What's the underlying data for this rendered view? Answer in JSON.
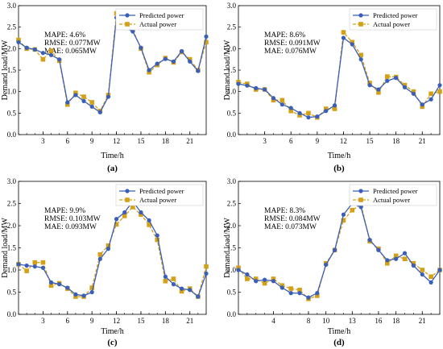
{
  "chart_data": [
    {
      "type": "line",
      "caption": "(a)",
      "xlabel": "Time/h",
      "ylabel": "Demand load/MW",
      "xticks": [
        3,
        6,
        9,
        12,
        15,
        18,
        21
      ],
      "yticks": [
        "0.0",
        "0.5",
        "1.0",
        "1.5",
        "2.0",
        "2.5",
        "3.0"
      ],
      "xlim": [
        0,
        23
      ],
      "ylim": [
        0,
        3
      ],
      "stats": [
        "MAPE: 4.6%",
        "RMSE: 0.077MW",
        "MAE: 0.065MW"
      ],
      "x": [
        0,
        1,
        2,
        3,
        4,
        5,
        6,
        7,
        8,
        9,
        10,
        11,
        12,
        13,
        14,
        15,
        16,
        17,
        18,
        19,
        20,
        21,
        22,
        23
      ],
      "series": [
        {
          "name": "Predicted power",
          "color": "#3a5fb8",
          "marker": "circle",
          "values": [
            2.15,
            2.02,
            1.98,
            1.9,
            1.85,
            1.75,
            0.75,
            0.92,
            0.78,
            0.65,
            0.52,
            0.88,
            2.72,
            2.5,
            2.4,
            2.02,
            1.5,
            1.65,
            1.76,
            1.7,
            1.94,
            1.7,
            1.48,
            2.28
          ]
        },
        {
          "name": "Actual power",
          "color": "#d4a017",
          "marker": "square",
          "values": [
            2.2,
            2.0,
            1.98,
            1.75,
            1.95,
            1.72,
            0.7,
            0.97,
            0.88,
            0.75,
            0.55,
            0.92,
            2.82,
            2.56,
            2.44,
            2.0,
            1.45,
            1.62,
            1.78,
            1.68,
            1.92,
            1.75,
            1.5,
            2.15
          ]
        }
      ]
    },
    {
      "type": "line",
      "caption": "(b)",
      "xlabel": "Time/h",
      "ylabel": "Demand load/MW",
      "xticks": [
        3,
        6,
        9,
        12,
        15,
        18,
        21
      ],
      "yticks": [
        "0.0",
        "0.5",
        "1.0",
        "1.5",
        "2.0",
        "2.5",
        "3.0"
      ],
      "xlim": [
        0,
        23
      ],
      "ylim": [
        0,
        3
      ],
      "stats": [
        "MAPE: 8.6%",
        "RMSE: 0.091MW",
        "MAE: 0.076MW"
      ],
      "x": [
        0,
        1,
        2,
        3,
        4,
        5,
        6,
        7,
        8,
        9,
        10,
        11,
        12,
        13,
        14,
        15,
        16,
        17,
        18,
        19,
        20,
        21,
        22,
        23
      ],
      "series": [
        {
          "name": "Predicted power",
          "color": "#3a5fb8",
          "marker": "circle",
          "values": [
            1.18,
            1.14,
            1.08,
            1.05,
            0.85,
            0.7,
            0.62,
            0.5,
            0.4,
            0.42,
            0.55,
            0.68,
            2.25,
            2.1,
            1.75,
            1.15,
            1.05,
            1.25,
            1.32,
            1.1,
            0.95,
            0.7,
            0.82,
            1.15
          ]
        },
        {
          "name": "Actual power",
          "color": "#d4a017",
          "marker": "square",
          "values": [
            1.22,
            1.18,
            1.05,
            1.05,
            0.8,
            0.8,
            0.55,
            0.45,
            0.5,
            0.4,
            0.6,
            0.6,
            2.38,
            2.15,
            1.85,
            1.2,
            0.98,
            1.35,
            1.34,
            1.15,
            1.0,
            0.65,
            0.95,
            1.0
          ]
        }
      ]
    },
    {
      "type": "line",
      "caption": "(c)",
      "xlabel": "Time/h",
      "ylabel": "Demand load/MW",
      "xticks": [
        3,
        6,
        9,
        12,
        15,
        18,
        21
      ],
      "yticks": [
        "0.0",
        "0.5",
        "1.0",
        "1.5",
        "2.0",
        "2.5",
        "3.0"
      ],
      "xlim": [
        0,
        23
      ],
      "ylim": [
        0,
        3
      ],
      "stats": [
        "MAPE: 9.9%",
        "RMSE: 0.103MW",
        "MAE: 0.093MW"
      ],
      "x": [
        0,
        1,
        2,
        3,
        4,
        5,
        6,
        7,
        8,
        9,
        10,
        11,
        12,
        13,
        14,
        15,
        16,
        17,
        18,
        19,
        20,
        21,
        22,
        23
      ],
      "series": [
        {
          "name": "Predicted power",
          "color": "#3a5fb8",
          "marker": "circle",
          "values": [
            1.13,
            1.1,
            1.08,
            1.05,
            0.72,
            0.68,
            0.6,
            0.45,
            0.42,
            0.5,
            1.25,
            1.48,
            2.15,
            2.3,
            2.55,
            2.3,
            2.12,
            1.78,
            0.85,
            0.68,
            0.58,
            0.55,
            0.4,
            0.92
          ]
        },
        {
          "name": "Actual power",
          "color": "#d4a017",
          "marker": "square",
          "values": [
            1.13,
            0.98,
            1.17,
            1.17,
            0.65,
            0.7,
            0.58,
            0.4,
            0.4,
            0.6,
            1.35,
            1.55,
            2.03,
            2.22,
            2.42,
            2.25,
            2.02,
            1.68,
            0.75,
            0.8,
            0.52,
            0.58,
            0.4,
            1.08
          ]
        }
      ]
    },
    {
      "type": "line",
      "caption": "(d)",
      "xlabel": "Time/h",
      "ylabel": "Demand load/MW",
      "xticks": [
        4,
        8,
        10,
        13,
        16,
        18,
        21
      ],
      "yticks": [
        "0.0",
        "0.5",
        "1.0",
        "1.5",
        "2.0",
        "2.5",
        "3.0"
      ],
      "xlim": [
        0,
        23
      ],
      "ylim": [
        0,
        3
      ],
      "stats": [
        "MAPE: 8.3%",
        "RMSE: 0.084MW",
        "MAE: 0.073MW"
      ],
      "x": [
        0,
        1,
        2,
        3,
        4,
        5,
        6,
        7,
        8,
        9,
        10,
        11,
        12,
        13,
        14,
        15,
        16,
        17,
        18,
        19,
        20,
        21,
        22,
        23
      ],
      "series": [
        {
          "name": "Predicted power",
          "color": "#3a5fb8",
          "marker": "circle",
          "values": [
            1.0,
            0.9,
            0.75,
            0.78,
            0.75,
            0.6,
            0.48,
            0.48,
            0.38,
            0.48,
            1.12,
            1.45,
            2.25,
            2.5,
            2.42,
            1.68,
            1.45,
            1.22,
            1.25,
            1.38,
            1.1,
            0.9,
            0.72,
            1.0
          ]
        },
        {
          "name": "Actual power",
          "color": "#d4a017",
          "marker": "square",
          "values": [
            1.05,
            0.8,
            0.8,
            0.7,
            0.8,
            0.65,
            0.58,
            0.55,
            0.35,
            0.42,
            1.15,
            1.45,
            2.12,
            2.35,
            2.48,
            1.65,
            1.48,
            1.15,
            1.32,
            1.25,
            1.15,
            1.0,
            0.85,
            1.0
          ]
        }
      ]
    }
  ]
}
